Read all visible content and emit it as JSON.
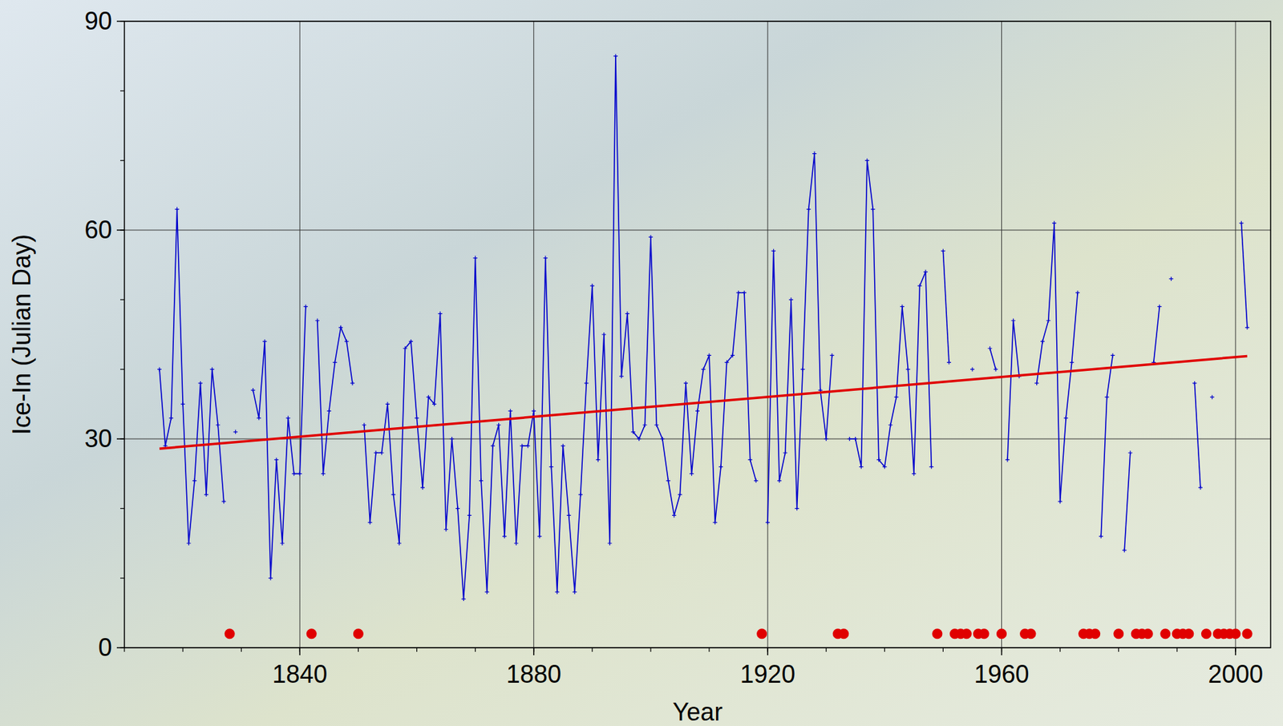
{
  "chart_data": {
    "type": "line",
    "xlabel": "Year",
    "ylabel": "Ice-In (Julian Day)",
    "xlim": [
      1810,
      2006
    ],
    "ylim": [
      0,
      90
    ],
    "xticks": [
      1840,
      1880,
      1920,
      1960,
      2000
    ],
    "yticks": [
      0,
      30,
      60,
      90
    ],
    "grid": true,
    "series": [
      {
        "type": "line",
        "color": "#0000cc",
        "marker": "plus",
        "x": [
          1816,
          1817,
          1818,
          1819,
          1820,
          1821,
          1822,
          1823,
          1824,
          1825,
          1826,
          1827,
          1828,
          1829,
          1830,
          1831,
          1832,
          1833,
          1834,
          1835,
          1836,
          1837,
          1838,
          1839,
          1840,
          1841,
          1842,
          1843,
          1844,
          1845,
          1846,
          1847,
          1848,
          1849,
          1850,
          1851,
          1852,
          1853,
          1854,
          1855,
          1856,
          1857,
          1858,
          1859,
          1860,
          1861,
          1862,
          1863,
          1864,
          1865,
          1866,
          1867,
          1868,
          1869,
          1870,
          1871,
          1872,
          1873,
          1874,
          1875,
          1876,
          1877,
          1878,
          1879,
          1880,
          1881,
          1882,
          1883,
          1884,
          1885,
          1886,
          1887,
          1888,
          1889,
          1890,
          1891,
          1892,
          1893,
          1894,
          1895,
          1896,
          1897,
          1898,
          1899,
          1900,
          1901,
          1902,
          1903,
          1904,
          1905,
          1906,
          1907,
          1908,
          1909,
          1910,
          1911,
          1912,
          1913,
          1914,
          1915,
          1916,
          1917,
          1918,
          1919,
          1920,
          1921,
          1922,
          1923,
          1924,
          1925,
          1926,
          1927,
          1928,
          1929,
          1930,
          1931,
          1932,
          1933,
          1934,
          1935,
          1936,
          1937,
          1938,
          1939,
          1940,
          1941,
          1942,
          1943,
          1944,
          1945,
          1946,
          1947,
          1948,
          1949,
          1950,
          1951,
          1952,
          1953,
          1954,
          1955,
          1956,
          1957,
          1958,
          1959,
          1960,
          1961,
          1962,
          1963,
          1964,
          1965,
          1966,
          1967,
          1968,
          1969,
          1970,
          1971,
          1972,
          1973,
          1974,
          1975,
          1976,
          1977,
          1978,
          1979,
          1980,
          1981,
          1982,
          1983,
          1984,
          1985,
          1986,
          1987,
          1988,
          1989,
          1990,
          1991,
          1992,
          1993,
          1994,
          1995,
          1996,
          1997,
          1998,
          1999,
          2000,
          2001,
          2002
        ],
        "values": [
          40,
          29,
          33,
          63,
          35,
          15,
          24,
          38,
          22,
          40,
          32,
          21,
          null,
          31,
          null,
          null,
          37,
          33,
          44,
          10,
          27,
          15,
          33,
          25,
          25,
          49,
          null,
          47,
          25,
          34,
          41,
          46,
          44,
          38,
          null,
          32,
          18,
          28,
          28,
          35,
          22,
          15,
          43,
          44,
          33,
          23,
          36,
          35,
          48,
          17,
          30,
          20,
          7,
          19,
          56,
          24,
          8,
          29,
          32,
          16,
          34,
          15,
          29,
          29,
          34,
          16,
          56,
          26,
          8,
          29,
          19,
          8,
          22,
          38,
          52,
          27,
          45,
          15,
          85,
          39,
          48,
          31,
          30,
          32,
          59,
          32,
          30,
          24,
          19,
          22,
          38,
          25,
          34,
          40,
          42,
          18,
          26,
          41,
          42,
          51,
          51,
          27,
          24,
          null,
          18,
          57,
          24,
          28,
          50,
          20,
          40,
          63,
          71,
          37,
          30,
          42,
          null,
          null,
          30,
          30,
          26,
          70,
          63,
          27,
          26,
          32,
          36,
          49,
          40,
          25,
          52,
          54,
          26,
          null,
          57,
          41,
          null,
          null,
          null,
          40,
          null,
          null,
          43,
          40,
          null,
          27,
          47,
          39,
          null,
          null,
          38,
          44,
          47,
          61,
          21,
          33,
          41,
          51,
          null,
          null,
          null,
          16,
          36,
          42,
          null,
          14,
          28,
          null,
          null,
          null,
          41,
          49,
          null,
          53,
          null,
          null,
          null,
          38,
          23,
          null,
          36,
          null,
          null,
          null,
          null,
          61,
          46
        ]
      },
      {
        "type": "line",
        "color": "#e00000",
        "marker": "none",
        "x": [
          1816,
          2002
        ],
        "values": [
          28.6,
          41.9
        ]
      },
      {
        "type": "scatter",
        "color": "#e00000",
        "marker": "circle",
        "x": [
          1828,
          1842,
          1850,
          1919,
          1932,
          1933,
          1949,
          1952,
          1953,
          1954,
          1956,
          1957,
          1960,
          1964,
          1965,
          1974,
          1975,
          1976,
          1980,
          1983,
          1984,
          1985,
          1988,
          1990,
          1991,
          1992,
          1995,
          1997,
          1998,
          1999,
          2000,
          2002
        ],
        "values": [
          2,
          2,
          2,
          2,
          2,
          2,
          2,
          2,
          2,
          2,
          2,
          2,
          2,
          2,
          2,
          2,
          2,
          2,
          2,
          2,
          2,
          2,
          2,
          2,
          2,
          2,
          2,
          2,
          2,
          2,
          2,
          2
        ]
      }
    ]
  }
}
